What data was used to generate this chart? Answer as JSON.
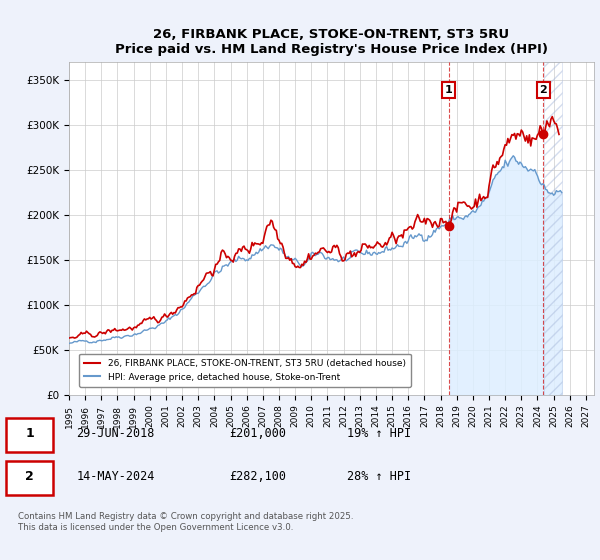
{
  "title": "26, FIRBANK PLACE, STOKE-ON-TRENT, ST3 5RU",
  "subtitle": "Price paid vs. HM Land Registry's House Price Index (HPI)",
  "ylabel_values": [
    "£0",
    "£50K",
    "£100K",
    "£150K",
    "£200K",
    "£250K",
    "£300K",
    "£350K"
  ],
  "yticks": [
    0,
    50000,
    100000,
    150000,
    200000,
    250000,
    300000,
    350000
  ],
  "ylim": [
    0,
    370000
  ],
  "xlim_start": 1995.0,
  "xlim_end": 2027.5,
  "red_color": "#cc0000",
  "blue_color": "#6699cc",
  "fill_blue_color": "#ddeeff",
  "background_color": "#eef2fb",
  "plot_bg_color": "#ffffff",
  "legend_label_red": "26, FIRBANK PLACE, STOKE-ON-TRENT, ST3 5RU (detached house)",
  "legend_label_blue": "HPI: Average price, detached house, Stoke-on-Trent",
  "transaction1_date": "29-JUN-2018",
  "transaction1_price": "£201,000",
  "transaction1_hpi": "19% ↑ HPI",
  "transaction1_year": 2018.5,
  "transaction2_date": "14-MAY-2024",
  "transaction2_price": "£282,100",
  "transaction2_hpi": "28% ↑ HPI",
  "transaction2_year": 2024.37,
  "footer": "Contains HM Land Registry data © Crown copyright and database right 2025.\nThis data is licensed under the Open Government Licence v3.0."
}
